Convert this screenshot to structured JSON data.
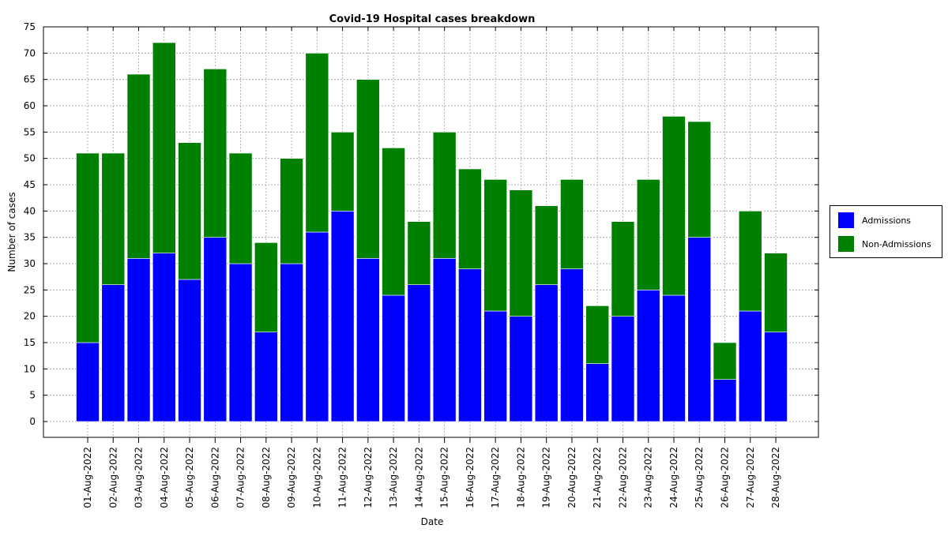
{
  "chart_data": {
    "type": "bar",
    "stacked": true,
    "title": "Covid-19 Hospital cases breakdown",
    "xlabel": "Date",
    "ylabel": "Number of cases",
    "ylim": [
      -3,
      75
    ],
    "yticks": [
      0,
      5,
      10,
      15,
      20,
      25,
      30,
      35,
      40,
      45,
      50,
      55,
      60,
      65,
      70,
      75
    ],
    "grid": true,
    "legend_position": "right",
    "categories": [
      "01-Aug-2022",
      "02-Aug-2022",
      "03-Aug-2022",
      "04-Aug-2022",
      "05-Aug-2022",
      "06-Aug-2022",
      "07-Aug-2022",
      "08-Aug-2022",
      "09-Aug-2022",
      "10-Aug-2022",
      "11-Aug-2022",
      "12-Aug-2022",
      "13-Aug-2022",
      "14-Aug-2022",
      "15-Aug-2022",
      "16-Aug-2022",
      "17-Aug-2022",
      "18-Aug-2022",
      "19-Aug-2022",
      "20-Aug-2022",
      "21-Aug-2022",
      "22-Aug-2022",
      "23-Aug-2022",
      "24-Aug-2022",
      "25-Aug-2022",
      "26-Aug-2022",
      "27-Aug-2022",
      "28-Aug-2022"
    ],
    "series": [
      {
        "name": "Admissions",
        "color": "#0000ff",
        "values": [
          15,
          26,
          31,
          32,
          27,
          35,
          30,
          17,
          30,
          36,
          40,
          31,
          24,
          26,
          31,
          29,
          21,
          20,
          26,
          29,
          11,
          20,
          25,
          24,
          35,
          8,
          21,
          17
        ]
      },
      {
        "name": "Non-Admissions",
        "color": "#008000",
        "values": [
          36,
          25,
          35,
          40,
          26,
          32,
          21,
          17,
          20,
          34,
          15,
          34,
          28,
          12,
          24,
          19,
          25,
          24,
          15,
          17,
          11,
          18,
          21,
          34,
          22,
          7,
          19,
          15
        ]
      }
    ]
  }
}
